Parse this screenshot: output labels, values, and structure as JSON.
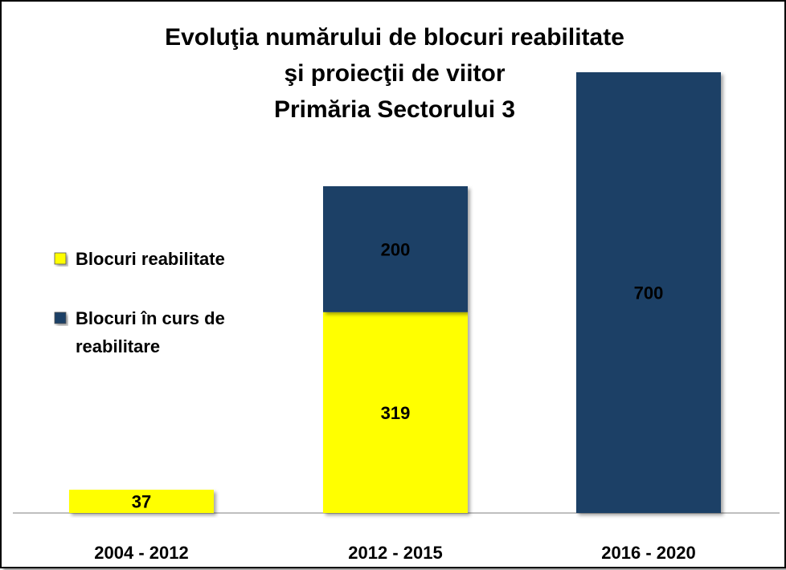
{
  "chart_data": {
    "type": "bar",
    "stacked": true,
    "title": [
      "Evoluţia numărului de blocuri reabilitate",
      "şi proiecţii de viitor",
      "Primăria Sectorului 3"
    ],
    "categories": [
      "2004 - 2012",
      "2012 - 2015",
      "2016 - 2020"
    ],
    "series": [
      {
        "name": "Blocuri reabilitate",
        "color": "#ffff00",
        "values": [
          37,
          319,
          null
        ]
      },
      {
        "name": "Blocuri în curs de reabilitare",
        "color": "#1f3f66",
        "values": [
          null,
          200,
          700
        ]
      }
    ],
    "ylim": [
      0,
      700
    ],
    "grid": false,
    "legend_position": "left"
  }
}
